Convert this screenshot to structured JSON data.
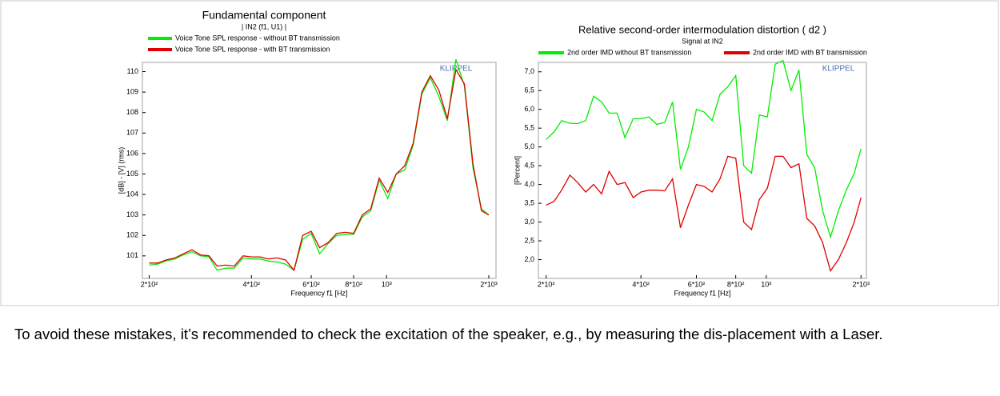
{
  "chart_data": [
    {
      "type": "line",
      "title": "Fundamental component",
      "subtitle": "| IN2 (f1, U1) |",
      "xlabel": "Frequency f1  [Hz]",
      "ylabel": "[dB] - [V]  (rms)",
      "annotation": "KLIPPEL",
      "xscale": "log",
      "grid": false,
      "x": [
        200,
        212,
        224,
        238,
        252,
        267,
        283,
        300,
        317,
        336,
        356,
        378,
        400,
        424,
        449,
        476,
        504,
        534,
        566,
        600,
        635,
        673,
        713,
        755,
        800,
        848,
        898,
        951,
        1008,
        1068,
        1131,
        1198,
        1270,
        1345,
        1425,
        1510,
        1600,
        1695,
        1796,
        1903,
        2000
      ],
      "xlim": [
        191,
        2100
      ],
      "xticks": [
        {
          "value": 200,
          "label": "2*10²"
        },
        {
          "value": 400,
          "label": "4*10²"
        },
        {
          "value": 600,
          "label": "6*10²"
        },
        {
          "value": 800,
          "label": "8*10²"
        },
        {
          "value": 1000,
          "label": "10³"
        },
        {
          "value": 2000,
          "label": "2*10³"
        }
      ],
      "ylim": [
        99.9,
        110.45
      ],
      "yticks": [
        101,
        102,
        103,
        104,
        105,
        106,
        107,
        108,
        109,
        110
      ],
      "series": [
        {
          "name": "Voice Tone SPL response - without BT transmission",
          "color": "#00ee00",
          "values": [
            100.55,
            100.6,
            100.75,
            100.85,
            101.05,
            101.2,
            101.0,
            100.95,
            100.3,
            100.4,
            100.4,
            100.9,
            100.85,
            100.85,
            100.75,
            100.7,
            100.6,
            100.3,
            101.8,
            102.1,
            101.1,
            101.6,
            102.0,
            102.05,
            102.05,
            102.9,
            103.2,
            104.7,
            103.8,
            105.0,
            105.2,
            106.4,
            108.9,
            109.7,
            108.8,
            107.6,
            110.6,
            109.3,
            105.3,
            103.3,
            103.0
          ]
        },
        {
          "name": "Voice Tone SPL response - with BT transmission",
          "color": "#e00000",
          "values": [
            100.65,
            100.65,
            100.8,
            100.9,
            101.1,
            101.3,
            101.05,
            101.0,
            100.5,
            100.55,
            100.5,
            101.0,
            100.95,
            100.95,
            100.85,
            100.9,
            100.8,
            100.3,
            102.0,
            102.2,
            101.4,
            101.65,
            102.1,
            102.15,
            102.1,
            103.0,
            103.3,
            104.8,
            104.1,
            105.0,
            105.4,
            106.5,
            109.0,
            109.8,
            109.1,
            107.7,
            110.1,
            109.4,
            105.5,
            103.2,
            103.0
          ]
        }
      ]
    },
    {
      "type": "line",
      "title": "Relative second-order intermodulation distortion   ( d2 )",
      "subtitle": "Signal at IN2",
      "xlabel": "Frequency f1  [Hz]",
      "ylabel": "[Percent]",
      "annotation": "KLIPPEL",
      "xscale": "log",
      "grid": false,
      "x": [
        200,
        212,
        224,
        238,
        252,
        267,
        283,
        300,
        317,
        336,
        356,
        378,
        400,
        424,
        449,
        476,
        504,
        534,
        566,
        600,
        635,
        673,
        713,
        755,
        800,
        848,
        898,
        951,
        1008,
        1068,
        1131,
        1198,
        1270,
        1345,
        1425,
        1510,
        1600,
        1695,
        1796,
        1903,
        2000
      ],
      "xlim": [
        189,
        2080
      ],
      "xticks": [
        {
          "value": 200,
          "label": "2*10²"
        },
        {
          "value": 400,
          "label": "4*10²"
        },
        {
          "value": 600,
          "label": "6*10²"
        },
        {
          "value": 800,
          "label": "8*10²"
        },
        {
          "value": 1000,
          "label": "10³"
        },
        {
          "value": 2000,
          "label": "2*10³"
        }
      ],
      "ylim": [
        1.5,
        7.25
      ],
      "yticks": [
        {
          "value": 2.0,
          "label": "2,0"
        },
        {
          "value": 2.5,
          "label": "2,5"
        },
        {
          "value": 3.0,
          "label": "3,0"
        },
        {
          "value": 3.5,
          "label": "3,5"
        },
        {
          "value": 4.0,
          "label": "4,0"
        },
        {
          "value": 4.5,
          "label": "4,5"
        },
        {
          "value": 5.0,
          "label": "5,0"
        },
        {
          "value": 5.5,
          "label": "5,5"
        },
        {
          "value": 6.0,
          "label": "6,0"
        },
        {
          "value": 6.5,
          "label": "6,5"
        },
        {
          "value": 7.0,
          "label": "7,0"
        }
      ],
      "series": [
        {
          "name": "2nd order IMD without BT transmission",
          "color": "#00ee00",
          "values": [
            5.2,
            5.4,
            5.7,
            5.63,
            5.62,
            5.7,
            6.35,
            6.2,
            5.9,
            5.9,
            5.25,
            5.75,
            5.75,
            5.8,
            5.6,
            5.65,
            6.2,
            4.4,
            5.0,
            6.0,
            5.93,
            5.7,
            6.4,
            6.6,
            6.9,
            4.5,
            4.3,
            5.85,
            5.8,
            7.2,
            7.3,
            6.5,
            7.05,
            4.8,
            4.45,
            3.3,
            2.6,
            3.3,
            3.85,
            4.3,
            4.95
          ]
        },
        {
          "name": "2nd order IMD with BT transmission",
          "color": "#e00000",
          "values": [
            3.45,
            3.55,
            3.85,
            4.25,
            4.05,
            3.8,
            4.0,
            3.75,
            4.35,
            4.0,
            4.05,
            3.65,
            3.8,
            3.85,
            3.85,
            3.83,
            4.15,
            2.85,
            3.45,
            4.0,
            3.95,
            3.8,
            4.15,
            4.75,
            4.7,
            3.0,
            2.8,
            3.6,
            3.9,
            4.75,
            4.75,
            4.45,
            4.55,
            3.1,
            2.9,
            2.45,
            1.7,
            2.0,
            2.45,
            3.0,
            3.65
          ]
        }
      ]
    }
  ],
  "paragraph": "To avoid these mistakes, it’s recommended to check the excitation of the speaker, e.g., by measuring the dis-placement with a Laser."
}
